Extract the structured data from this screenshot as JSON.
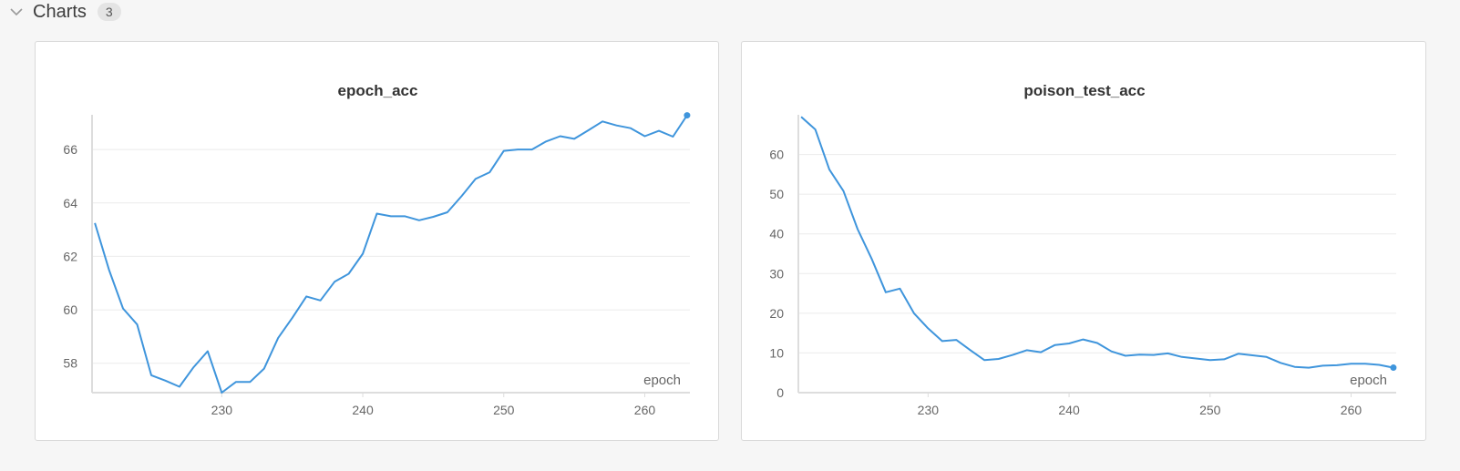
{
  "section": {
    "title": "Charts",
    "count": "3"
  },
  "colors": {
    "line": "#3f95dc",
    "grid": "#ebebeb",
    "axis": "#dddddd"
  },
  "chart_data": [
    {
      "type": "line",
      "title": "epoch_acc",
      "xlabel": "epoch",
      "ylabel": "",
      "xlim": [
        220.8,
        263.2
      ],
      "ylim": [
        56.9,
        67.3
      ],
      "xticks": [
        230,
        240,
        250,
        260
      ],
      "yticks": [
        58,
        60,
        62,
        64,
        66
      ],
      "x": [
        221,
        222,
        223,
        224,
        225,
        226,
        227,
        228,
        229,
        230,
        231,
        232,
        233,
        234,
        235,
        236,
        237,
        238,
        239,
        240,
        241,
        242,
        243,
        244,
        245,
        246,
        247,
        248,
        249,
        250,
        251,
        252,
        253,
        254,
        255,
        256,
        257,
        258,
        259,
        260,
        261,
        262,
        263
      ],
      "series": [
        {
          "name": "epoch_acc",
          "values": [
            63.25,
            61.5,
            60.05,
            59.45,
            57.55,
            57.35,
            57.12,
            57.85,
            58.45,
            56.9,
            57.3,
            57.3,
            57.8,
            58.95,
            59.7,
            60.5,
            60.35,
            61.05,
            61.35,
            62.1,
            63.6,
            63.5,
            63.5,
            63.35,
            63.48,
            63.65,
            64.25,
            64.9,
            65.15,
            65.95,
            66.0,
            66.0,
            66.3,
            66.5,
            66.4,
            66.72,
            67.05,
            66.9,
            66.8,
            66.5,
            66.7,
            66.48,
            67.28
          ]
        }
      ]
    },
    {
      "type": "line",
      "title": "poison_test_acc",
      "xlabel": "epoch",
      "ylabel": "",
      "xlim": [
        220.8,
        263.2
      ],
      "ylim": [
        0,
        70
      ],
      "xticks": [
        230,
        240,
        250,
        260
      ],
      "yticks": [
        0,
        10,
        20,
        30,
        40,
        50,
        60
      ],
      "x": [
        221,
        222,
        223,
        224,
        225,
        226,
        227,
        228,
        229,
        230,
        231,
        232,
        233,
        234,
        235,
        236,
        237,
        238,
        239,
        240,
        241,
        242,
        243,
        244,
        245,
        246,
        247,
        248,
        249,
        250,
        251,
        252,
        253,
        254,
        255,
        256,
        257,
        258,
        259,
        260,
        261,
        262,
        263
      ],
      "series": [
        {
          "name": "poison_test_acc",
          "values": [
            69.5,
            66.3,
            56.2,
            50.8,
            41.2,
            33.7,
            25.3,
            26.2,
            20.0,
            16.2,
            13.0,
            13.3,
            10.7,
            8.2,
            8.5,
            9.5,
            10.7,
            10.2,
            12.0,
            12.4,
            13.4,
            12.5,
            10.4,
            9.3,
            9.6,
            9.5,
            9.9,
            9.0,
            8.6,
            8.2,
            8.4,
            9.8,
            9.4,
            9.0,
            7.5,
            6.5,
            6.3,
            6.8,
            6.9,
            7.3,
            7.3,
            7.0,
            6.3
          ]
        }
      ]
    }
  ]
}
